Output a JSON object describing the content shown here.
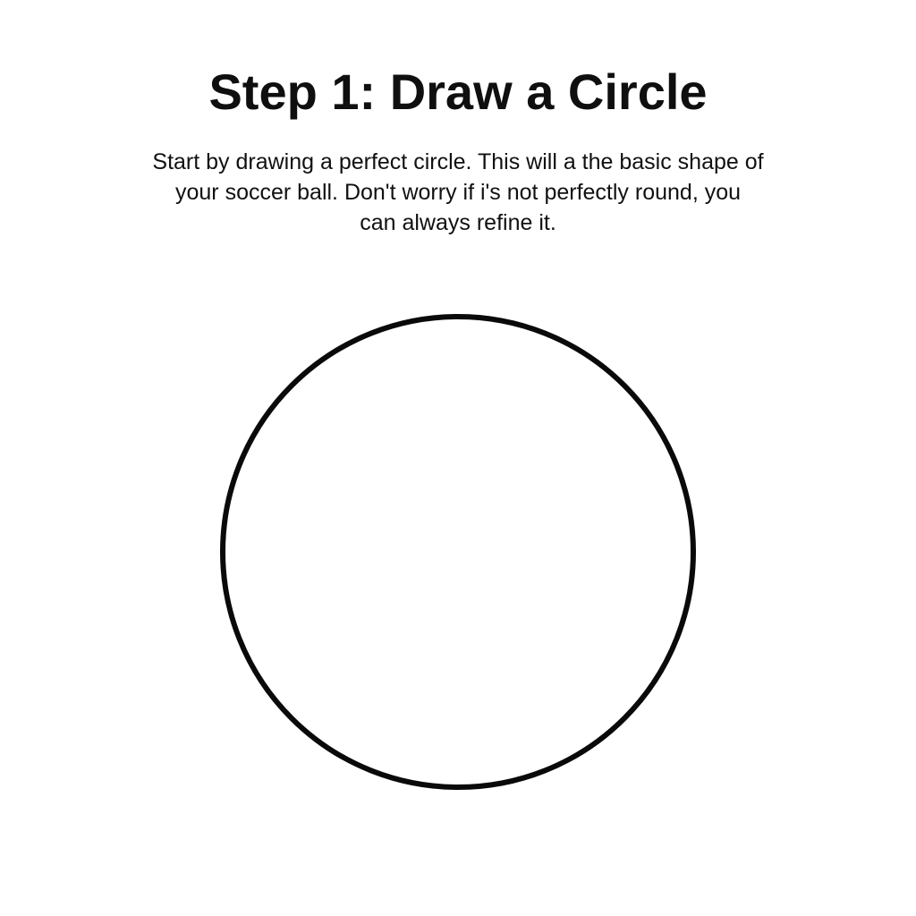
{
  "step": {
    "title": "Step 1: Draw a Circle",
    "description_lines": [
      "Start by drawing a perfect circle. This will a the basic shape of",
      "your soccer ball. Don't worry if i's not perfectly round, you",
      "can always refine it."
    ]
  },
  "colors": {
    "background": "#ffffff",
    "text": "#111111",
    "circle_stroke": "#0a0a0a"
  },
  "illustration": {
    "shape": "circle"
  }
}
